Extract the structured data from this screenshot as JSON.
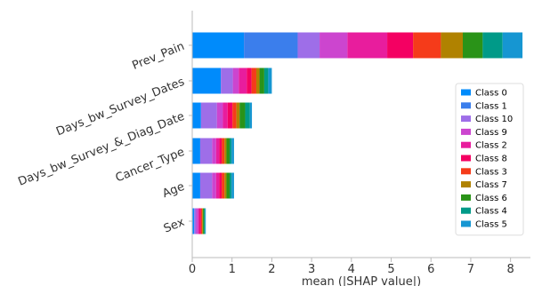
{
  "chart_data": {
    "type": "bar",
    "orientation": "horizontal",
    "stacked": true,
    "title": "",
    "xlabel": "mean (|SHAP value|)",
    "ylabel": "",
    "xlim": [
      0,
      8.5
    ],
    "xticks": [
      "0",
      "1",
      "2",
      "3",
      "4",
      "5",
      "6",
      "7",
      "8"
    ],
    "grid": false,
    "legend_position": "right",
    "categories": [
      "Prev_Pain",
      "Days_bw_Survey_Dates",
      "Days_bw_Survey_&_Diag_Date",
      "Cancer_Type",
      "Age",
      "Sex"
    ],
    "series": [
      {
        "name": "Class 0",
        "color": "#008bfb",
        "values": [
          1.3,
          0.72,
          0.22,
          0.2,
          0.2,
          0.05
        ]
      },
      {
        "name": "Class 1",
        "color": "#3b7eec",
        "values": [
          1.35,
          0.0,
          0.0,
          0.0,
          0.0,
          0.0
        ]
      },
      {
        "name": "Class 10",
        "color": "#9e6ee8",
        "values": [
          0.55,
          0.3,
          0.4,
          0.3,
          0.3,
          0.05
        ]
      },
      {
        "name": "Class 9",
        "color": "#cc45cf",
        "values": [
          0.7,
          0.15,
          0.15,
          0.1,
          0.1,
          0.05
        ]
      },
      {
        "name": "Class 2",
        "color": "#e81d9d",
        "values": [
          1.0,
          0.2,
          0.12,
          0.08,
          0.08,
          0.04
        ]
      },
      {
        "name": "Class 8",
        "color": "#f40062",
        "values": [
          0.65,
          0.12,
          0.12,
          0.06,
          0.06,
          0.03
        ]
      },
      {
        "name": "Class 3",
        "color": "#f53b1a",
        "values": [
          0.7,
          0.12,
          0.1,
          0.07,
          0.07,
          0.03
        ]
      },
      {
        "name": "Class 7",
        "color": "#b08200",
        "values": [
          0.55,
          0.08,
          0.08,
          0.05,
          0.05,
          0.02
        ]
      },
      {
        "name": "Class 6",
        "color": "#2a9318",
        "values": [
          0.5,
          0.12,
          0.14,
          0.08,
          0.08,
          0.03
        ]
      },
      {
        "name": "Class 4",
        "color": "#009a88",
        "values": [
          0.5,
          0.1,
          0.12,
          0.05,
          0.05,
          0.02
        ]
      },
      {
        "name": "Class 5",
        "color": "#1696d2",
        "values": [
          0.5,
          0.09,
          0.05,
          0.06,
          0.06,
          0.02
        ]
      }
    ]
  }
}
